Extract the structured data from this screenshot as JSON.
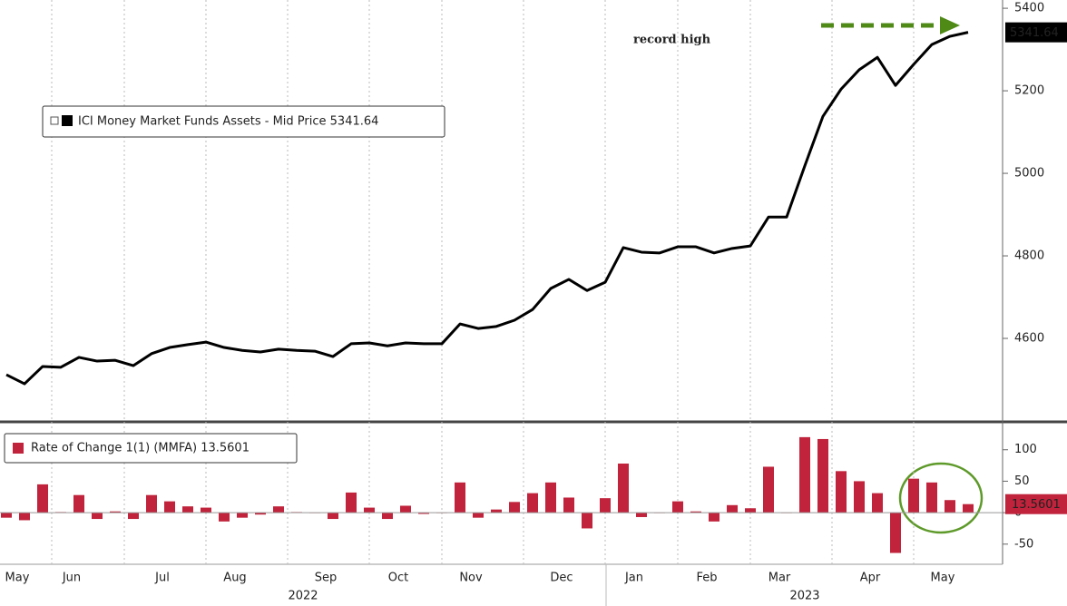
{
  "chart_data": [
    {
      "type": "line",
      "series": [
        {
          "name": "ICI Money Market Funds Assets - Mid Price 5341.64",
          "color": "#000000",
          "values": [
            4512,
            4490,
            4532,
            4530,
            4554,
            4545,
            4547,
            4534,
            4563,
            4578,
            4585,
            4591,
            4578,
            4571,
            4567,
            4574,
            4571,
            4569,
            4556,
            4587,
            4589,
            4582,
            4589,
            4587,
            4587,
            4635,
            4624,
            4629,
            4644,
            4670,
            4721,
            4743,
            4716,
            4736,
            4820,
            4809,
            4807,
            4822,
            4822,
            4807,
            4818,
            4824,
            4894,
            4894,
            5018,
            5138,
            5204,
            5251,
            5281,
            5213,
            5264,
            5312,
            5332,
            5341.64
          ]
        }
      ],
      "ylim": [
        4400,
        5420
      ],
      "yticks": [
        4600,
        4800,
        5000,
        5200,
        5400
      ],
      "annotation": "record high",
      "annotation_color": "#4f8a17",
      "grid": true
    },
    {
      "type": "bar",
      "categories": [
        null,
        "May",
        null,
        null,
        "Jun",
        null,
        null,
        null,
        null,
        "Jul",
        null,
        null,
        null,
        "Aug",
        null,
        null,
        null,
        null,
        "Sep",
        null,
        null,
        null,
        "Oct",
        null,
        null,
        null,
        "Nov",
        null,
        null,
        null,
        null,
        "Dec",
        null,
        null,
        null,
        "Jan",
        null,
        null,
        null,
        "Feb",
        null,
        null,
        null,
        "Mar",
        null,
        null,
        null,
        null,
        "Apr",
        null,
        null,
        null,
        "May",
        null
      ],
      "series": [
        {
          "name": "Rate of Change 1(1) (MMFA) 13.5601",
          "color": "#c0233b",
          "values": [
            -8,
            -12,
            45,
            1,
            28,
            -10,
            2,
            -10,
            28,
            18,
            10,
            8,
            -14,
            -8,
            -3,
            10,
            1,
            0,
            -10,
            32,
            8,
            -10,
            11,
            -2,
            0,
            48,
            -8,
            5,
            17,
            31,
            48,
            24,
            -25,
            23,
            78,
            -7,
            0,
            18,
            2,
            -14,
            12,
            7,
            73,
            0,
            120,
            117,
            66,
            50,
            31,
            -64,
            54,
            48,
            20,
            13.5601
          ]
        }
      ],
      "ylim": [
        -82,
        140
      ],
      "yticks": [
        -50,
        0,
        50,
        100
      ],
      "grid": true
    }
  ],
  "years": [
    "2022",
    "2023"
  ]
}
